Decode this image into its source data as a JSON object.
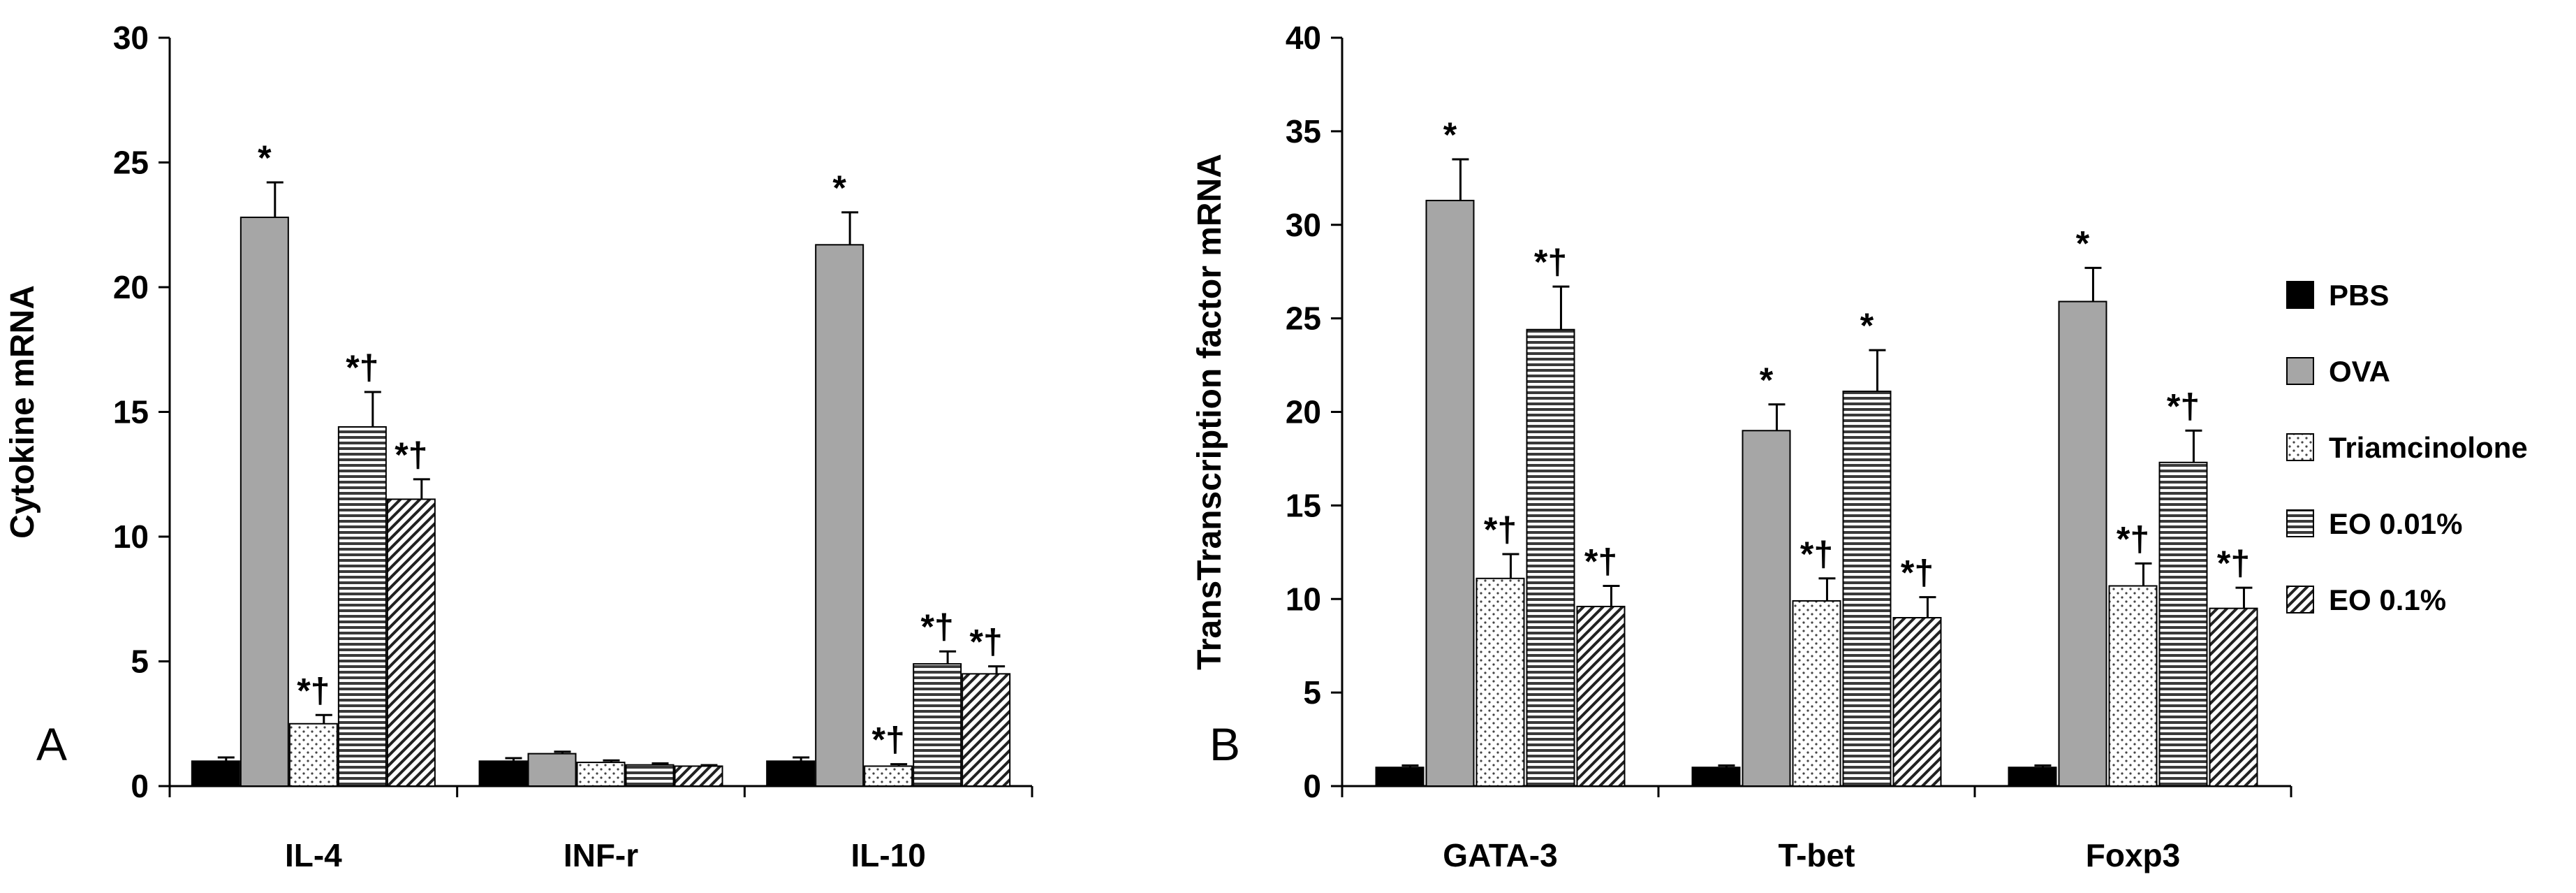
{
  "chart_data": [
    {
      "type": "bar",
      "panel_label": "A",
      "ylabel": "Cytokine mRNA",
      "xlabel": "",
      "ylim": [
        0,
        30
      ],
      "yticks": [
        0,
        5,
        10,
        15,
        20,
        25,
        30
      ],
      "categories": [
        "IL-4",
        "INF-r",
        "IL-10"
      ],
      "series": [
        {
          "name": "PBS",
          "values": [
            1.0,
            1.0,
            1.0
          ],
          "errors": [
            0.15,
            0.12,
            0.15
          ],
          "annotations": [
            "",
            "",
            ""
          ]
        },
        {
          "name": "OVA",
          "values": [
            22.8,
            1.3,
            21.7
          ],
          "errors": [
            1.4,
            0.08,
            1.3
          ],
          "annotations": [
            "*",
            "",
            "*"
          ]
        },
        {
          "name": "Triamcinolone",
          "values": [
            2.5,
            0.95,
            0.8
          ],
          "errors": [
            0.35,
            0.08,
            0.08
          ],
          "annotations": [
            "*†",
            "",
            "*†"
          ]
        },
        {
          "name": "EO 0.01%",
          "values": [
            14.4,
            0.85,
            4.9
          ],
          "errors": [
            1.4,
            0.06,
            0.5
          ],
          "annotations": [
            "*†",
            "",
            "*†"
          ]
        },
        {
          "name": "EO 0.1%",
          "values": [
            11.5,
            0.8,
            4.5
          ],
          "errors": [
            0.8,
            0.04,
            0.3
          ],
          "annotations": [
            "*†",
            "",
            "*†"
          ]
        }
      ]
    },
    {
      "type": "bar",
      "panel_label": "B",
      "ylabel": "TransTranscription factor mRNA",
      "xlabel": "",
      "ylim": [
        0,
        40
      ],
      "yticks": [
        0,
        5,
        10,
        15,
        20,
        25,
        30,
        35,
        40
      ],
      "categories": [
        "GATA-3",
        "T-bet",
        "Foxp3"
      ],
      "series": [
        {
          "name": "PBS",
          "values": [
            1.0,
            1.0,
            1.0
          ],
          "errors": [
            0.1,
            0.1,
            0.1
          ],
          "annotations": [
            "",
            "",
            ""
          ]
        },
        {
          "name": "OVA",
          "values": [
            31.3,
            19.0,
            25.9
          ],
          "errors": [
            2.2,
            1.4,
            1.8
          ],
          "annotations": [
            "*",
            "*",
            "*"
          ]
        },
        {
          "name": "Triamcinolone",
          "values": [
            11.1,
            9.9,
            10.7
          ],
          "errors": [
            1.3,
            1.2,
            1.2
          ],
          "annotations": [
            "*†",
            "*†",
            "*†"
          ]
        },
        {
          "name": "EO 0.01%",
          "values": [
            24.4,
            21.1,
            17.3
          ],
          "errors": [
            2.3,
            2.2,
            1.7
          ],
          "annotations": [
            "*†",
            "*",
            "*†"
          ]
        },
        {
          "name": "EO 0.1%",
          "values": [
            9.6,
            9.0,
            9.5
          ],
          "errors": [
            1.1,
            1.1,
            1.1
          ],
          "annotations": [
            "*†",
            "*†",
            "*†"
          ]
        }
      ]
    }
  ],
  "legend": [
    {
      "name": "PBS",
      "pattern": "solid"
    },
    {
      "name": "OVA",
      "pattern": "gray"
    },
    {
      "name": "Triamcinolone",
      "pattern": "dots"
    },
    {
      "name": "EO 0.01%",
      "pattern": "hlines"
    },
    {
      "name": "EO 0.1%",
      "pattern": "diag"
    }
  ],
  "colors": {
    "axis": "#000000",
    "bar_black": "#000000",
    "bar_gray": "#a6a6a6",
    "background": "#ffffff"
  }
}
